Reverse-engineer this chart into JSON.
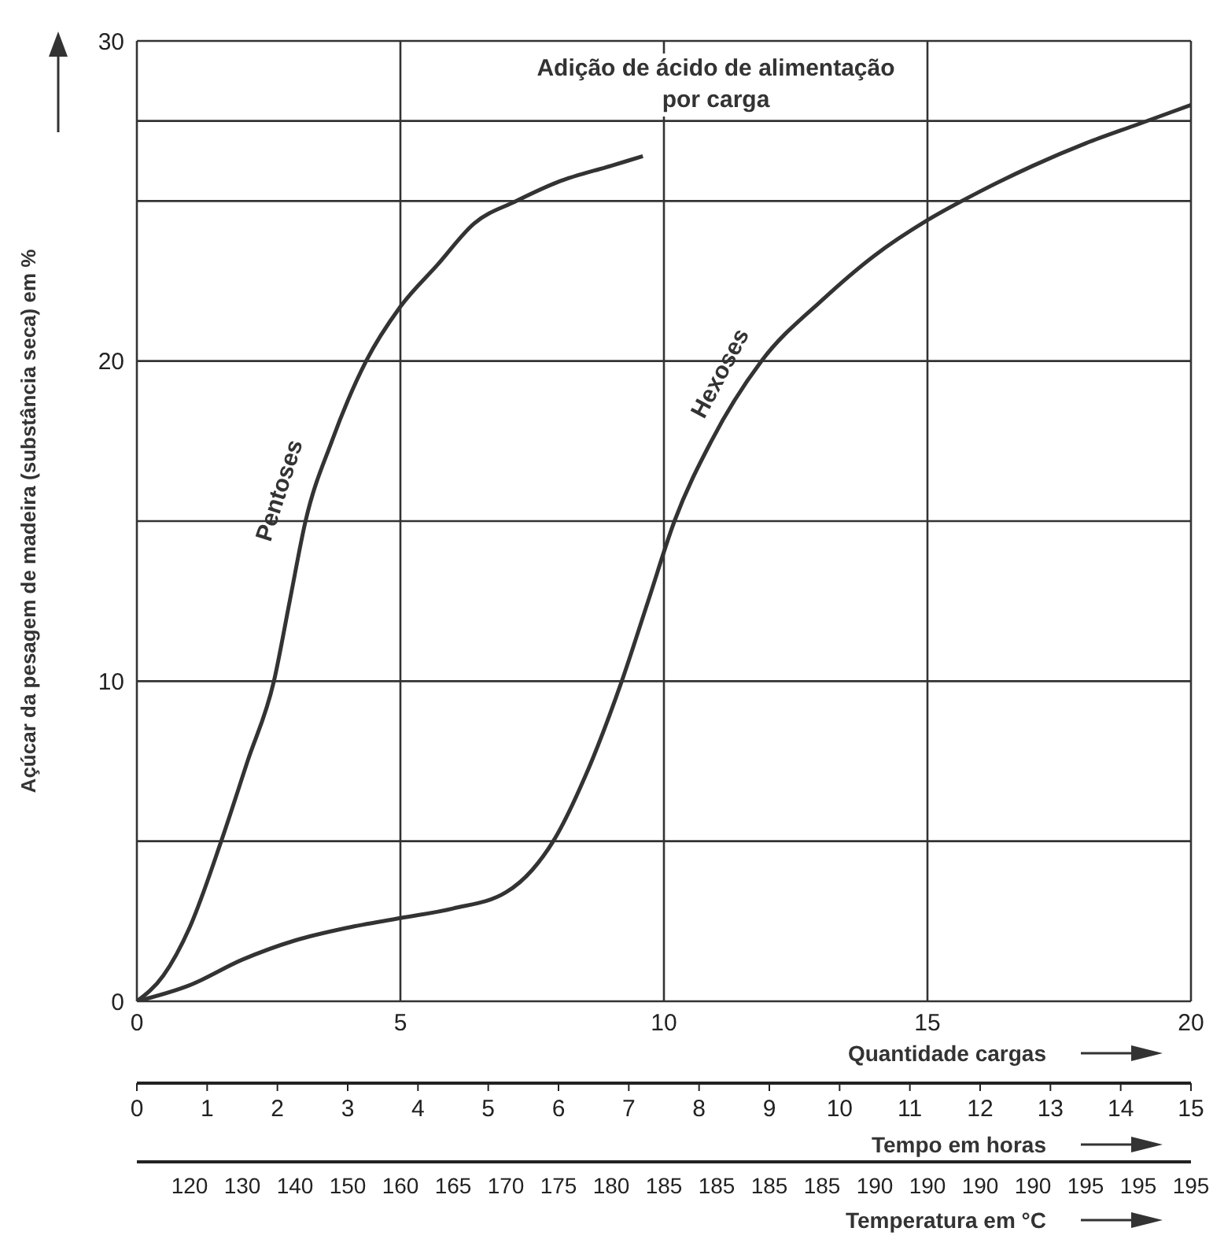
{
  "chart_data": {
    "type": "line",
    "title": "Adição de ácido de alimentação por carga",
    "xlabel": "Quantidade cargas",
    "x2label": "Tempo em horas",
    "ylabel": "Açúcar da pesagem de madeira (substância seca) em %",
    "xlim": [
      0,
      20
    ],
    "xticks": [
      0,
      5,
      10,
      15,
      20
    ],
    "x2lim": [
      0,
      15
    ],
    "x2ticks": [
      0,
      1,
      2,
      3,
      4,
      5,
      6,
      7,
      8,
      9,
      10,
      11,
      12,
      13,
      14,
      15
    ],
    "ylim": [
      0,
      30
    ],
    "yticks": [
      0,
      {
        "value": 5,
        "label": null
      },
      10,
      {
        "value": 15,
        "label": null
      },
      20,
      {
        "value": 25,
        "label": null
      },
      {
        "value": 27.5,
        "label": null
      },
      30
    ],
    "grid": true,
    "line_style": "solid",
    "annotations": [
      "120",
      "130",
      "140",
      "150",
      "160",
      "165",
      "170",
      "175",
      "180",
      "185",
      "185",
      "185",
      "185",
      "190",
      "190",
      "190",
      "190",
      "195",
      "195",
      "195",
      "Temperatura em °C"
    ],
    "series": [
      {
        "name": "Pentoses",
        "color": "#333333",
        "x": [
          0,
          0.5,
          1,
          1.6,
          2.1,
          2.6,
          2.9,
          3.2,
          3.7,
          4.35,
          5,
          5.7,
          6.4,
          7.2,
          8,
          9,
          9.6
        ],
        "values": [
          0,
          0.8,
          2.3,
          5,
          7.5,
          10,
          12.5,
          15,
          17.5,
          20,
          21.7,
          23,
          24.3,
          25,
          25.6,
          26.1,
          26.4
        ]
      },
      {
        "name": "Hexoses",
        "color": "#333333",
        "x": [
          0,
          1,
          2,
          3,
          4,
          5,
          6,
          7,
          7.5,
          7.9,
          8.5,
          9.2,
          9.7,
          10.2,
          10.9,
          11.85,
          13,
          14,
          15,
          16,
          17,
          18,
          19,
          20
        ],
        "values": [
          0,
          0.5,
          1.3,
          1.9,
          2.3,
          2.6,
          2.9,
          3.4,
          4.1,
          5,
          7,
          10,
          12.5,
          15,
          17.5,
          20,
          21.9,
          23.3,
          24.4,
          25.3,
          26.1,
          26.8,
          27.4,
          28
        ]
      }
    ]
  }
}
